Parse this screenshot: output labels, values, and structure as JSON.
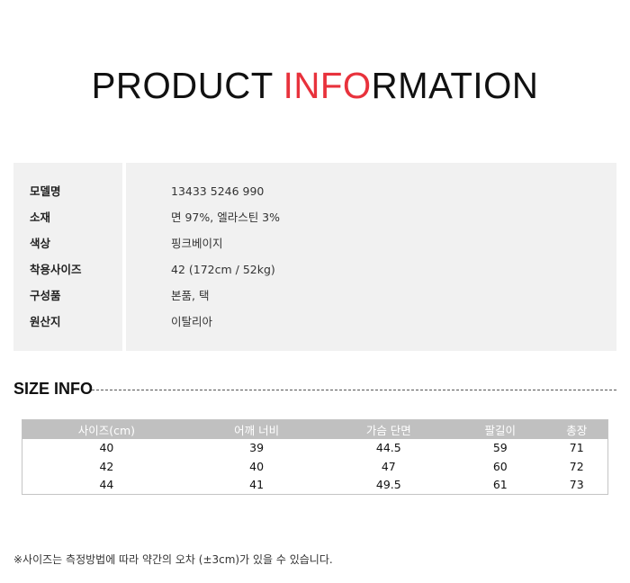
{
  "title": {
    "part1": "PRODUCT ",
    "highlight": "INFO",
    "part2": "RMATION",
    "accent": "#e8323c"
  },
  "info": [
    {
      "label": "모델명",
      "value": "13433 5246 990"
    },
    {
      "label": "소재",
      "value": "면 97%, 엘라스틴 3%"
    },
    {
      "label": "색상",
      "value": "핑크베이지"
    },
    {
      "label": "착용사이즈",
      "value": "42 (172cm / 52kg)"
    },
    {
      "label": "구성품",
      "value": "본품, 택"
    },
    {
      "label": "원산지",
      "value": "이탈리아"
    }
  ],
  "size_info": {
    "heading": "SIZE INFO",
    "headers": [
      "사이즈(cm)",
      "어깨 너비",
      "가슴 단면",
      "팔길이",
      "총장"
    ],
    "rows": [
      [
        "40",
        "39",
        "44.5",
        "59",
        "71"
      ],
      [
        "42",
        "40",
        "47",
        "60",
        "72"
      ],
      [
        "44",
        "41",
        "49.5",
        "61",
        "73"
      ]
    ]
  },
  "note": "※사이즈는 측정방법에 따라 약간의 오차 (±3cm)가 있을 수 있습니다."
}
